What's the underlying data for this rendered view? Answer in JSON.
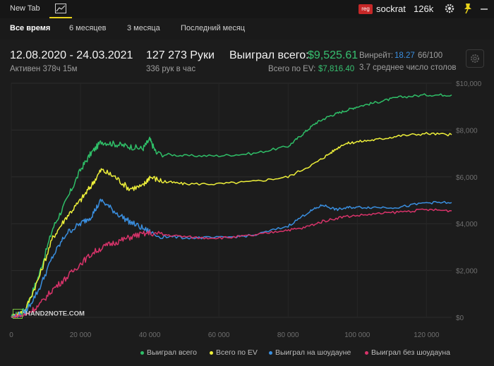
{
  "topbar": {
    "new_tab_label": "New Tab",
    "reg_badge": "reg",
    "username": "sockrat",
    "balance": "126k"
  },
  "periods": [
    "Все время",
    "6 месяцев",
    "3 месяца",
    "Последний месяц"
  ],
  "stats": {
    "date_range": "12.08.2020 - 24.03.2021",
    "active": "Активен 378ч 15м",
    "hands": "127 273 Руки",
    "hands_per_hour": "336 рук в час",
    "won_total_label": "Выиграл всего:",
    "won_total_value": "$9,525.61",
    "ev_label": "Всего по EV:",
    "ev_value": "$7,816.40",
    "winrate_label": "Винрейт:",
    "winrate_value": "18.27",
    "winrate_sample": "66/100",
    "avg_tables": "3.7 среднее число столов"
  },
  "logo_text": "HAND2NOTE.COM",
  "colors": {
    "green": "#2fbf68",
    "yellow": "#eef03a",
    "blue": "#3a8fe0",
    "pink": "#d8336a",
    "active_tab_underline": "#e8d21a"
  },
  "chart_data": {
    "type": "line",
    "x_ticks": [
      "0",
      "20 000",
      "40 000",
      "60 000",
      "80 000",
      "100 000",
      "120 000"
    ],
    "y_ticks": [
      "$0",
      "$2,000",
      "$4,000",
      "$6,000",
      "$8,000",
      "$10,000"
    ],
    "xlim": [
      0,
      127273
    ],
    "ylim": [
      0,
      10000
    ],
    "grid": true,
    "legend_position": "bottom-right",
    "series": [
      {
        "name": "Выиграл всего",
        "color": "#2fbf68",
        "points": [
          [
            0,
            0
          ],
          [
            4000,
            300
          ],
          [
            8000,
            1800
          ],
          [
            12000,
            3800
          ],
          [
            16000,
            5000
          ],
          [
            20000,
            6300
          ],
          [
            23000,
            7000
          ],
          [
            26000,
            7500
          ],
          [
            30000,
            7400
          ],
          [
            34000,
            7300
          ],
          [
            38000,
            7200
          ],
          [
            40000,
            7600
          ],
          [
            42000,
            7000
          ],
          [
            50000,
            6900
          ],
          [
            60000,
            6900
          ],
          [
            70000,
            7000
          ],
          [
            80000,
            7300
          ],
          [
            84000,
            7800
          ],
          [
            88000,
            8300
          ],
          [
            92000,
            8600
          ],
          [
            96000,
            8800
          ],
          [
            100000,
            9000
          ],
          [
            106000,
            9200
          ],
          [
            112000,
            9400
          ],
          [
            120000,
            9500
          ],
          [
            127273,
            9500
          ]
        ]
      },
      {
        "name": "Всего по EV",
        "color": "#eef03a",
        "points": [
          [
            0,
            0
          ],
          [
            4000,
            300
          ],
          [
            8000,
            1700
          ],
          [
            12000,
            3400
          ],
          [
            16000,
            4300
          ],
          [
            20000,
            5000
          ],
          [
            23000,
            5600
          ],
          [
            26000,
            6300
          ],
          [
            30000,
            6000
          ],
          [
            34000,
            5500
          ],
          [
            38000,
            5600
          ],
          [
            40000,
            6000
          ],
          [
            44000,
            5800
          ],
          [
            50000,
            5700
          ],
          [
            60000,
            5700
          ],
          [
            70000,
            5800
          ],
          [
            80000,
            6000
          ],
          [
            88000,
            6600
          ],
          [
            92000,
            7000
          ],
          [
            96000,
            7400
          ],
          [
            100000,
            7500
          ],
          [
            106000,
            7600
          ],
          [
            112000,
            7750
          ],
          [
            120000,
            7850
          ],
          [
            127273,
            7800
          ]
        ]
      },
      {
        "name": "Выиграл на шоудауне",
        "color": "#3a8fe0",
        "points": [
          [
            0,
            0
          ],
          [
            4000,
            200
          ],
          [
            8000,
            1200
          ],
          [
            12000,
            2600
          ],
          [
            16000,
            3600
          ],
          [
            20000,
            4000
          ],
          [
            23000,
            4300
          ],
          [
            26000,
            5000
          ],
          [
            30000,
            4500
          ],
          [
            34000,
            4100
          ],
          [
            38000,
            3800
          ],
          [
            42000,
            3500
          ],
          [
            50000,
            3400
          ],
          [
            60000,
            3400
          ],
          [
            70000,
            3500
          ],
          [
            80000,
            3900
          ],
          [
            86000,
            4500
          ],
          [
            90000,
            4800
          ],
          [
            94000,
            4600
          ],
          [
            98000,
            4700
          ],
          [
            104000,
            4700
          ],
          [
            112000,
            4700
          ],
          [
            120000,
            4900
          ],
          [
            127273,
            4900
          ]
        ]
      },
      {
        "name": "Выиграл без шоудауна",
        "color": "#d8336a",
        "points": [
          [
            0,
            0
          ],
          [
            4000,
            100
          ],
          [
            8000,
            500
          ],
          [
            12000,
            1200
          ],
          [
            16000,
            1700
          ],
          [
            20000,
            2300
          ],
          [
            24000,
            2800
          ],
          [
            28000,
            3100
          ],
          [
            32000,
            3300
          ],
          [
            36000,
            3500
          ],
          [
            40000,
            3600
          ],
          [
            46000,
            3500
          ],
          [
            54000,
            3400
          ],
          [
            62000,
            3400
          ],
          [
            70000,
            3500
          ],
          [
            78000,
            3700
          ],
          [
            84000,
            3800
          ],
          [
            90000,
            4100
          ],
          [
            96000,
            4300
          ],
          [
            104000,
            4400
          ],
          [
            112000,
            4500
          ],
          [
            120000,
            4600
          ],
          [
            127273,
            4550
          ]
        ]
      }
    ]
  }
}
